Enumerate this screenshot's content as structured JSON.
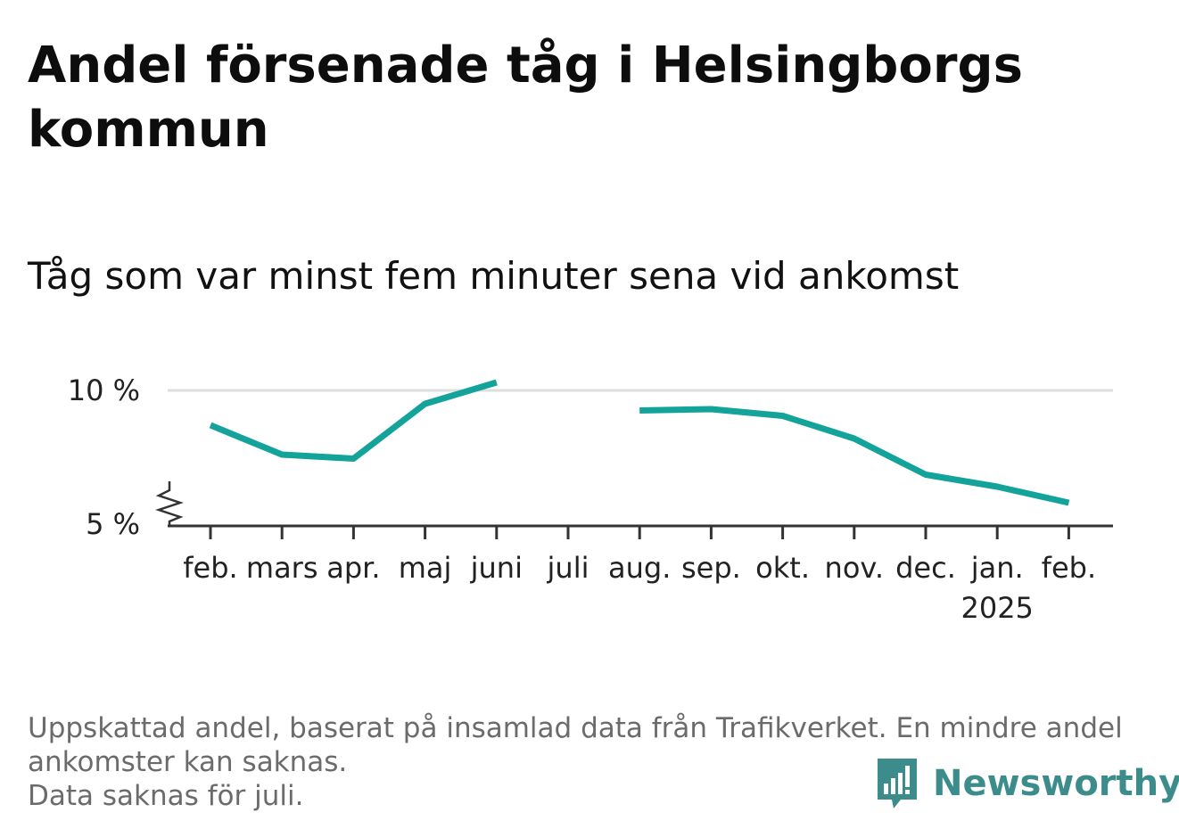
{
  "title": "Andel försenade tåg i Helsingborgs kommun",
  "subtitle": "Tåg som var minst fem minuter sena vid ankomst",
  "footer": {
    "note_line1": "Uppskattad andel, baserat på insamlad data från Trafikverket. En mindre andel",
    "note_line2": "ankomster kan saknas.",
    "note_line3": "Data saknas för juli."
  },
  "brand": {
    "name": "Newsworthy",
    "logo_icon": "bar-chart-speech-bubble-icon"
  },
  "colors": {
    "line": "#13a39a",
    "gridline": "#dedede",
    "axis": "#333333",
    "brand": "#3b8c8a"
  },
  "chart_data": {
    "type": "line",
    "title": "",
    "xlabel": "",
    "ylabel": "",
    "categories": [
      "feb.",
      "mars",
      "apr.",
      "maj",
      "juni",
      "juli",
      "aug.",
      "sep.",
      "okt.",
      "nov.",
      "dec.",
      "jan.",
      "feb."
    ],
    "year_label": {
      "category_index": 11,
      "text": "2025"
    },
    "series": [
      {
        "values": [
          8.7,
          7.6,
          7.45,
          9.5,
          10.3,
          null,
          9.25,
          9.3,
          9.05,
          8.2,
          6.85,
          6.4,
          5.8
        ]
      }
    ],
    "yticks": [
      {
        "value": 5,
        "label": "5 %"
      },
      {
        "value": 10,
        "label": "10 %"
      }
    ],
    "ylim": [
      5,
      10.5
    ],
    "y_axis_break": true,
    "grid": "horizontal",
    "legend": "none"
  }
}
